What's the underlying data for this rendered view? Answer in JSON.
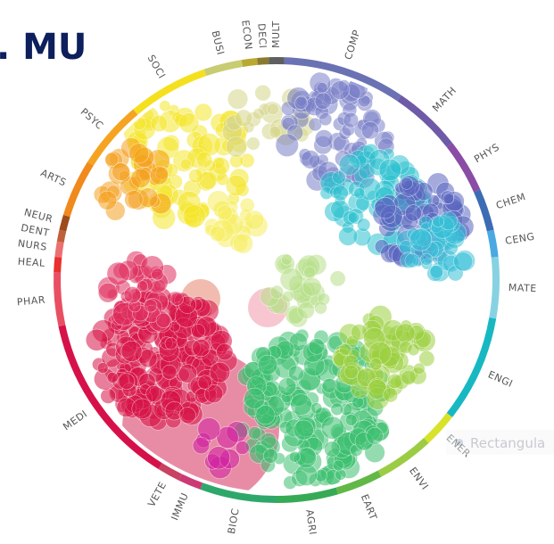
{
  "header": {
    "title": ". MU"
  },
  "ring": {
    "segments": [
      {
        "label": "COMP",
        "color": "#6a72b4"
      },
      {
        "label": "MATH",
        "color": "#6e5aa6"
      },
      {
        "label": "PHYS",
        "color": "#8a4ca4"
      },
      {
        "label": "CHEM",
        "color": "#3c6cb4"
      },
      {
        "label": "CENG",
        "color": "#4aa8e2"
      },
      {
        "label": "MATE",
        "color": "#86d2e2"
      },
      {
        "label": "ENGI",
        "color": "#18b8c2"
      },
      {
        "label": "ENER",
        "color": "#d8e22a"
      },
      {
        "label": "ENVI",
        "color": "#9ccc44"
      },
      {
        "label": "EART",
        "color": "#62b846"
      },
      {
        "label": "AGRI",
        "color": "#36aa54"
      },
      {
        "label": "BIOC",
        "color": "#2ea86a"
      },
      {
        "label": "IMMU",
        "color": "#cc3a76"
      },
      {
        "label": "VETE",
        "color": "#c84262"
      },
      {
        "label": "MEDI",
        "color": "#d6114a"
      },
      {
        "label": "PHAR",
        "color": "#e94f62"
      },
      {
        "label": "HEAL",
        "color": "#e8302e"
      },
      {
        "label": "NURS",
        "color": "#ec7070"
      },
      {
        "label": "DENT",
        "color": "#c0603a"
      },
      {
        "label": "NEUR",
        "color": "#9c4c1c"
      },
      {
        "label": "ARTS",
        "color": "#f08a1c"
      },
      {
        "label": "PSYC",
        "color": "#f5a422"
      },
      {
        "label": "SOCI",
        "color": "#f5e020"
      },
      {
        "label": "BUSI",
        "color": "#c8cc72"
      },
      {
        "label": "ECON",
        "color": "#baa830"
      },
      {
        "label": "DECI",
        "color": "#8a7a30"
      },
      {
        "label": "MULT",
        "color": "#5e6060"
      }
    ]
  },
  "tooltip": {
    "text": "Rectangula"
  }
}
